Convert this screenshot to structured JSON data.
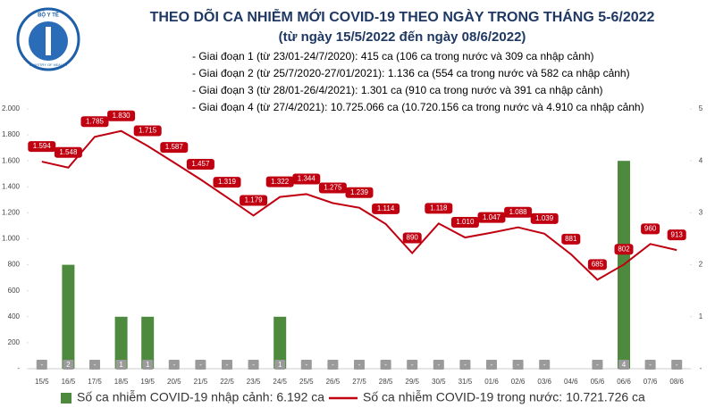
{
  "header": {
    "logo_text": "BỘ Y TẾ",
    "logo_subtext": "MINISTRY OF HEALTH"
  },
  "chart_data": {
    "type": "combo",
    "title": "THEO DÕI CA NHIỄM MỚI COVID-19 THEO NGÀY TRONG THÁNG 5-6/2022",
    "subtitle": "(từ ngày 15/5/2022 đến ngày 08/6/2022)",
    "annotations": [
      "- Giai đoạn 1 (từ 23/01-24/7/2020): 415 ca (106 ca trong nước và 309 ca nhập cảnh)",
      "- Giai đoạn 2 (từ 25/7/2020-27/01/2021): 1.136 ca (554 ca trong nước và 582 ca nhập cảnh)",
      "- Giai đoạn 3 (từ 28/01-26/4/2021): 1.301 ca (910 ca trong nước và 391 ca nhập cảnh)",
      "- Giai đoạn 4 (từ 27/4/2021): 10.725.066 ca (10.720.156 ca trong nước và 4.910 ca nhập cảnh)"
    ],
    "categories": [
      "15/5",
      "16/5",
      "17/5",
      "18/5",
      "19/5",
      "20/5",
      "21/5",
      "22/5",
      "23/5",
      "24/5",
      "25/5",
      "26/5",
      "27/5",
      "28/5",
      "29/5",
      "30/5",
      "31/5",
      "01/6",
      "02/6",
      "03/6",
      "04/6",
      "05/6",
      "06/6",
      "07/6",
      "08/6"
    ],
    "series": [
      {
        "name": "Số ca nhiễm COVID-19 nhập cảnh: 6.192 ca",
        "type": "bar",
        "axis": "y2",
        "color": "#4e8a3e",
        "values": [
          0,
          2,
          0,
          1,
          1,
          0,
          0,
          0,
          0,
          1,
          0,
          0,
          0,
          0,
          0,
          0,
          0,
          0,
          0,
          0,
          null,
          0,
          4,
          0,
          0
        ],
        "value_labels": [
          "-",
          "2",
          "-",
          "1",
          "1",
          "-",
          "-",
          "-",
          "-",
          "1",
          "-",
          "-",
          "-",
          "-",
          "-",
          "-",
          "-",
          "-",
          "-",
          "-",
          null,
          "-",
          "4",
          "-",
          "-"
        ]
      },
      {
        "name": "Số ca nhiễm COVID-19 trong nước: 10.721.726 ca",
        "type": "line",
        "color": "#c00010",
        "values": [
          1594,
          1548,
          1785,
          1830,
          1715,
          1587,
          1457,
          1319,
          1179,
          1322,
          1344,
          1275,
          1239,
          1114,
          890,
          1118,
          1010,
          1047,
          1088,
          1039,
          881,
          685,
          802,
          960,
          913
        ],
        "value_labels": [
          "1.594",
          "1.548",
          "1.785",
          "1.830",
          "1.715",
          "1.587",
          "1.457",
          "1.319",
          "1.179",
          "1.322",
          "1.344",
          "1.275",
          "1.239",
          "1.114",
          "890",
          "1.118",
          "1.010",
          "1.047",
          "1.088",
          "1.039",
          "881",
          "685",
          "802",
          "960",
          "913"
        ]
      }
    ],
    "ylim": [
      0,
      2000
    ],
    "yticks": [
      {
        "value": 0,
        "label": "-"
      },
      200,
      400,
      600,
      800,
      {
        "value": 1000,
        "label": "1.000"
      },
      {
        "value": 1200,
        "label": "1.200"
      },
      {
        "value": 1400,
        "label": "1.400"
      },
      {
        "value": 1600,
        "label": "1.600"
      },
      {
        "value": 1800,
        "label": "1.800"
      },
      {
        "value": 2000,
        "label": "2.000"
      }
    ],
    "y2lim": [
      0,
      5
    ],
    "y2ticks": [
      {
        "value": 0,
        "label": "-"
      },
      1,
      2,
      3,
      4,
      5
    ]
  }
}
